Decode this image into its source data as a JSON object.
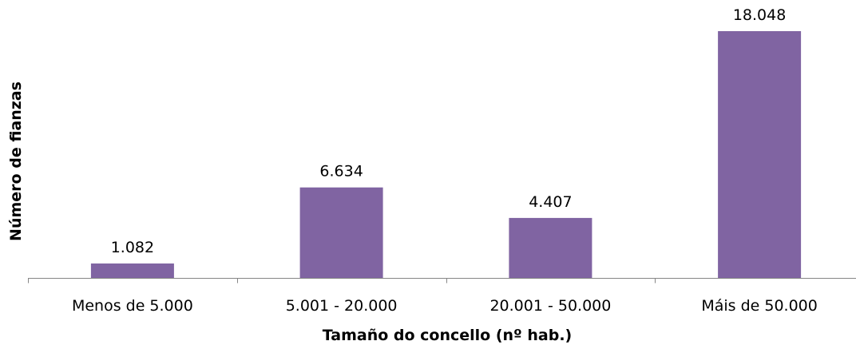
{
  "chart_data": {
    "type": "bar",
    "categories": [
      "Menos de 5.000",
      "5.001 - 20.000",
      "20.001 - 50.000",
      "Máis de 50.000"
    ],
    "values": [
      1082,
      6634,
      4407,
      18048
    ],
    "data_labels": [
      "1.082",
      "6.634",
      "4.407",
      "18.048"
    ],
    "xlabel": "Tamaño do concello (nº hab.)",
    "ylabel": "Número de fianzas",
    "ylim": [
      0,
      18048
    ],
    "grid": false,
    "legend": "none",
    "bar_color": "#8064A2",
    "axis_color": "#868686"
  }
}
